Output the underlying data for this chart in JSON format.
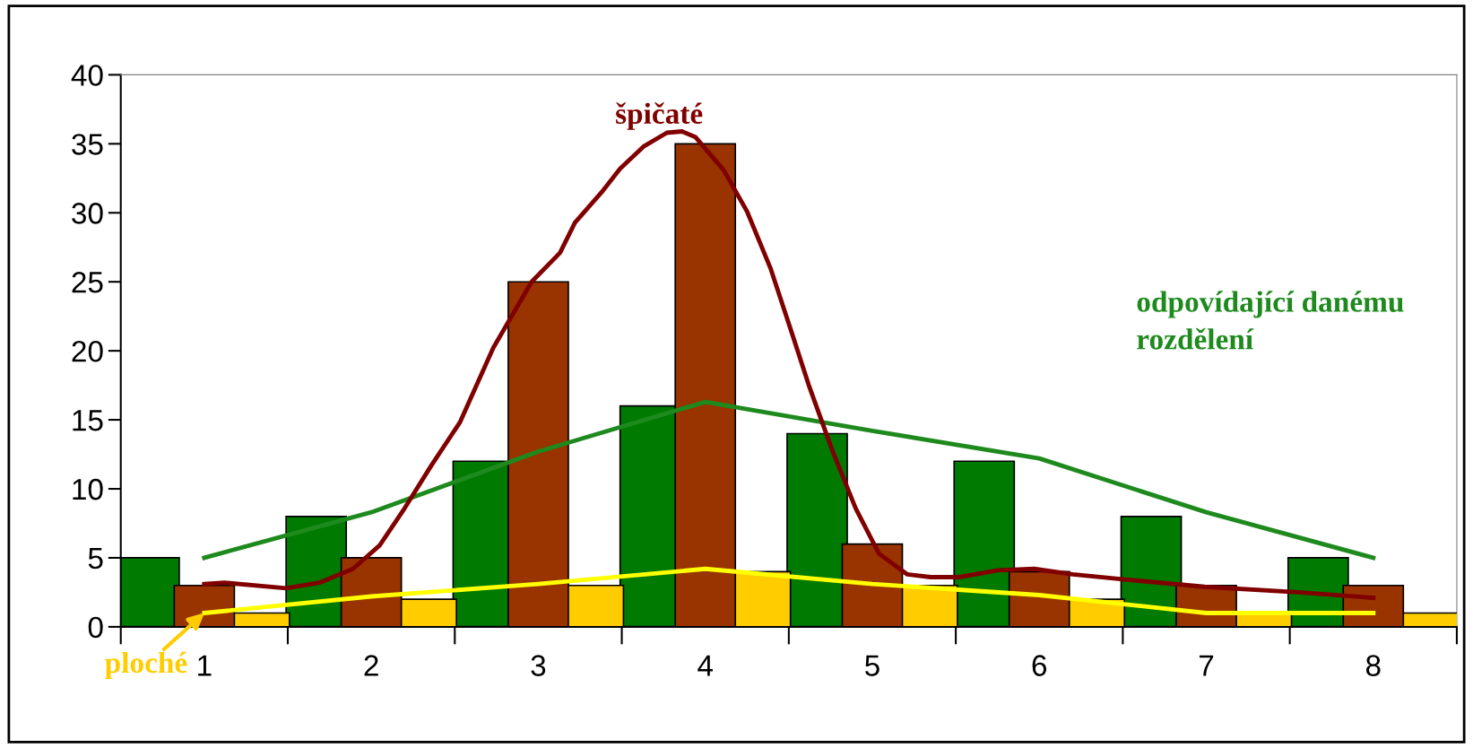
{
  "chart_data": {
    "type": "bar",
    "x": [
      1,
      2,
      3,
      4,
      5,
      6,
      7,
      8
    ],
    "series": [
      {
        "color": "#007a00",
        "values": [
          5,
          8,
          12,
          16,
          14,
          12,
          8,
          5
        ]
      },
      {
        "color": "#ffcc00",
        "values": [
          1,
          2,
          3,
          4,
          3,
          2,
          1,
          1
        ]
      },
      {
        "color": "#993300",
        "values": [
          3,
          5,
          25,
          35,
          6,
          4,
          3,
          3
        ]
      },
      {
        "type": "line",
        "name": "odpovídající danému\nrozdělení",
        "color": "#1e8a1e",
        "x": [
          1,
          2,
          3,
          4,
          5,
          6,
          7,
          8
        ],
        "values": [
          5,
          8.3,
          12.7,
          16.3,
          14.2,
          12.2,
          8.3,
          5
        ]
      },
      {
        "type": "line",
        "name": "ploché",
        "color": "#ffff00",
        "x": [
          1,
          2,
          3,
          4,
          5,
          6,
          7,
          8
        ],
        "values": [
          1,
          2.2,
          3.1,
          4.2,
          3.1,
          2.3,
          1,
          1
        ]
      },
      {
        "type": "line",
        "name": "špičaté",
        "color": "#800000",
        "x": [
          1.0,
          1.12,
          1.49,
          1.69,
          1.89,
          2.05,
          2.2,
          2.36,
          2.53,
          2.73,
          2.96,
          3.13,
          3.22,
          3.38,
          3.49,
          3.63,
          3.77,
          3.86,
          3.94,
          4.11,
          4.25,
          4.39,
          4.51,
          4.62,
          4.76,
          4.9,
          5.04,
          5.21,
          5.35,
          5.52,
          5.75,
          5.97,
          6.2,
          6.54,
          6.99,
          7.55,
          8.0
        ],
        "values": [
          3.1,
          3.2,
          2.8,
          3.2,
          4.2,
          5.9,
          8.6,
          11.7,
          14.8,
          20.2,
          25.0,
          27.1,
          29.3,
          31.5,
          33.2,
          34.8,
          35.8,
          35.9,
          35.5,
          33.1,
          30.1,
          26.0,
          21.6,
          17.5,
          12.8,
          8.6,
          5.3,
          3.8,
          3.6,
          3.6,
          4.1,
          4.2,
          3.8,
          3.4,
          2.9,
          2.5,
          2.1
        ]
      }
    ],
    "xlim": [
      0.5,
      8.5
    ],
    "xticks": [
      1,
      2,
      3,
      4,
      5,
      6,
      7,
      8
    ],
    "ylim": [
      0,
      40
    ],
    "yticks": [
      0,
      5,
      10,
      15,
      20,
      25,
      30,
      35,
      40
    ],
    "grid": false,
    "legend": false
  }
}
